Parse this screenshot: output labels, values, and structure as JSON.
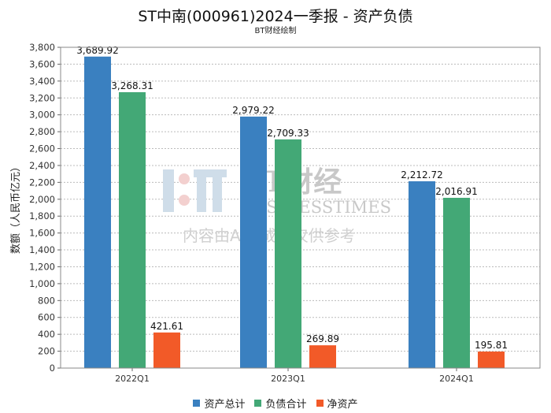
{
  "title": "ST中南(000961)2024一季报 - 资产负债",
  "subtitle": "BT财经绘制",
  "watermark": {
    "line1": "BT财经",
    "line2": "BUSINESSTIMES",
    "line3": "内容由AI生成，仅供参考"
  },
  "chart_data": {
    "type": "bar",
    "title": "ST中南(000961)2024一季报 - 资产负债",
    "ylabel": "数额（人民币亿元）",
    "xlabel": "",
    "ylim": [
      0,
      3800
    ],
    "yticks": [
      0,
      200,
      400,
      600,
      800,
      1000,
      1200,
      1400,
      1600,
      1800,
      2000,
      2200,
      2400,
      2600,
      2800,
      3000,
      3200,
      3400,
      3600,
      3800
    ],
    "ytick_labels": [
      "0",
      "200",
      "400",
      "600",
      "800",
      "1,000",
      "1,200",
      "1,400",
      "1,600",
      "1,800",
      "2,000",
      "2,200",
      "2,400",
      "2,600",
      "2,800",
      "3,000",
      "3,200",
      "3,400",
      "3,600",
      "3,800"
    ],
    "grid": true,
    "legend_position": "bottom",
    "categories": [
      "2022Q1",
      "2023Q1",
      "2024Q1"
    ],
    "series": [
      {
        "name": "资产总计",
        "color": "#3a80c0",
        "values": [
          3689.92,
          2979.22,
          2212.72
        ],
        "labels": [
          "3,689.92",
          "2,979.22",
          "2,212.72"
        ]
      },
      {
        "name": "负债合计",
        "color": "#43a876",
        "values": [
          3268.31,
          2709.33,
          2016.91
        ],
        "labels": [
          "3,268.31",
          "2,709.33",
          "2,016.91"
        ]
      },
      {
        "name": "净资产",
        "color": "#f25a28",
        "values": [
          421.61,
          269.89,
          195.81
        ],
        "labels": [
          "421.61",
          "269.89",
          "195.81"
        ]
      }
    ]
  }
}
